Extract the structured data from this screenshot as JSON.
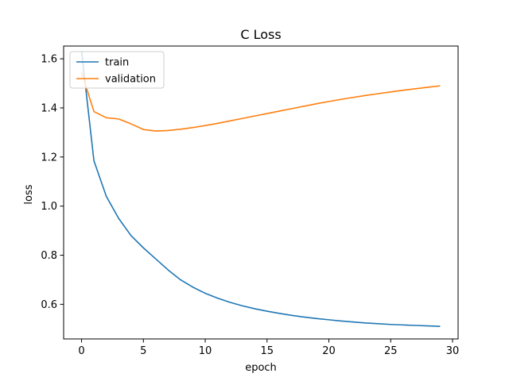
{
  "chart_data": {
    "type": "line",
    "title": "C Loss",
    "xlabel": "epoch",
    "ylabel": "loss",
    "xlim": [
      -1.45,
      30.45
    ],
    "ylim": [
      0.459,
      1.652
    ],
    "xticks": [
      0,
      5,
      10,
      15,
      20,
      25,
      30
    ],
    "xtick_labels": [
      "0",
      "5",
      "10",
      "15",
      "20",
      "25",
      "30"
    ],
    "yticks": [
      0.6,
      0.8,
      1.0,
      1.2,
      1.4,
      1.6
    ],
    "ytick_labels": [
      "0.6",
      "0.8",
      "1.0",
      "1.2",
      "1.4",
      "1.6"
    ],
    "grid": false,
    "legend_position": "upper-left",
    "x": [
      0,
      1,
      2,
      3,
      4,
      5,
      6,
      7,
      8,
      9,
      10,
      11,
      12,
      13,
      14,
      15,
      16,
      17,
      18,
      19,
      20,
      21,
      22,
      23,
      24,
      25,
      26,
      27,
      28,
      29
    ],
    "series": [
      {
        "name": "train",
        "color": "#1f77b4",
        "values": [
          1.63,
          1.185,
          1.04,
          0.95,
          0.88,
          0.83,
          0.785,
          0.74,
          0.7,
          0.67,
          0.645,
          0.625,
          0.608,
          0.594,
          0.582,
          0.572,
          0.563,
          0.555,
          0.548,
          0.542,
          0.537,
          0.532,
          0.528,
          0.524,
          0.521,
          0.518,
          0.516,
          0.514,
          0.512,
          0.51
        ]
      },
      {
        "name": "validation",
        "color": "#ff7f0e",
        "values": [
          1.545,
          1.385,
          1.36,
          1.355,
          1.335,
          1.312,
          1.306,
          1.308,
          1.313,
          1.32,
          1.328,
          1.337,
          1.347,
          1.357,
          1.367,
          1.377,
          1.387,
          1.397,
          1.407,
          1.417,
          1.426,
          1.435,
          1.443,
          1.451,
          1.458,
          1.465,
          1.472,
          1.478,
          1.484,
          1.49
        ]
      }
    ]
  }
}
